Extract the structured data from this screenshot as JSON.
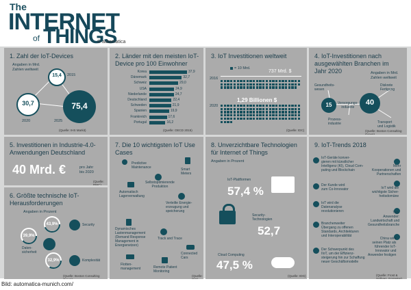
{
  "header": {
    "the": "The",
    "internet": "INTERNET",
    "of": "of",
    "things": "THINGS",
    "copyright": "© automatica"
  },
  "caption": "Bild: automatica-munich.com/",
  "p1": {
    "title": "1. Zahl der IoT-Devices",
    "sub": "Angaben in Mrd.\nZahlen weltweit",
    "v2015": "15,4",
    "y2015": "2015",
    "v2020": "30,7",
    "y2020": "2020",
    "v2025": "75,4",
    "y2025": "2025",
    "src": "(Quelle: IHS Markit)"
  },
  "p2": {
    "title": "2. Länder mit den meisten IoT-\nDevice pro 100 Einwohner",
    "src": "(Quelle: OECD 2015)",
    "rows": [
      {
        "c": "Korea",
        "v": "37,9",
        "n": 37.9
      },
      {
        "c": "Dänemark",
        "v": "32,7",
        "n": 32.7
      },
      {
        "c": "Schweiz",
        "v": "29,0",
        "n": 29.0
      },
      {
        "c": "USA",
        "v": "24,9",
        "n": 24.9
      },
      {
        "c": "Niederlande",
        "v": "24,7",
        "n": 24.7
      },
      {
        "c": "Deutschland",
        "v": "22,4",
        "n": 22.4
      },
      {
        "c": "Schweden",
        "v": "21,9",
        "n": 21.9
      },
      {
        "c": "Spanien",
        "v": "19,9",
        "n": 19.9
      },
      {
        "c": "Frankreich",
        "v": "17,6",
        "n": 17.6
      },
      {
        "c": "Portugal",
        "v": "16,2",
        "n": 16.2
      }
    ]
  },
  "p3": {
    "title": "3. IoT Investitionen weltweit",
    "legend": "= 10 Mrd.",
    "v2016": "737 Mrd. $",
    "y2016": "2016",
    "v2020": "1,29 Billionen $",
    "y2020": "2020",
    "src": "(Quelle: IDC)"
  },
  "p4": {
    "title": "4. IoT-Investitionen nach\nausgewählten Branchen im\nJahr 2020",
    "sub": "Angaben in Mrd.\nZahlen weltweit",
    "a": "Gesundheits-\nwesen",
    "b": "Diskrete\nFertigung",
    "c": "Versorgungs-\nindustrie",
    "d": "Prozess-\nindustrie",
    "e": "Transport\nund Logistik",
    "n15": "15",
    "n40": "40",
    "src": "(Quelle: Boston Consulting Group)"
  },
  "p5": {
    "title": "5. Investitionen in Industrie-4.0-\nAnwendungen Deutschland",
    "value": "40 Mrd. €",
    "unit": "pro Jahr\nbis 2020",
    "src": "(Quelle: PWC)"
  },
  "p6": {
    "title": "6. Größte technische IoT-\nHerausforderungen",
    "sub": "Angaben in Prozent",
    "v1": "43,9%",
    "l1": "Security",
    "v2": "39,9%",
    "l2": "Daten-\nsicherheit",
    "v3": "32,9%",
    "l3": "Komplexität",
    "src": "(Quelle: Boston Consulting Group)"
  },
  "p7": {
    "title": "7. Die 10 wichtigsten IoT Use Cases",
    "items": [
      "Predictive\nMaintenance",
      "Smart\nMeters",
      "Automatisch\nLagerverwaltung",
      "Selbstoptimierende\nProduktion",
      "Verteilte Energie-\nerzeugung und\nspeicherung",
      "Dynamisches\nLastenmanagement\n(Demand Response\nManagement in\nEnergienetzen)",
      "Track and Trace",
      "Connected\nCars",
      "Flotten-\nmanagement",
      "Remote Patient\nMonitoring"
    ],
    "src": "(Quelle: IDG)"
  },
  "p8": {
    "title": "8. Unverzichtbare Technologien\nfür Internet of Things",
    "sub": "Angaben in Prozent",
    "l1": "IoT-Plattformen",
    "v1": "57,4 %",
    "l2": "Security-\nTechnologien",
    "v2": "52,7",
    "l3": "Cloud Computing",
    "v3": "47,5 %",
    "src": "(Quelle: IDG)"
  },
  "p9": {
    "title": "9. IoT-Trends 2018",
    "items": [
      "IoT-Geräte konver-\ngieren mit künstlicher\nIntelligenz (KI), Cloud Com-\nputing und Blockchain",
      "Mehr\nKooperationen und\nPartnerschaften",
      "Der Kunde wird\nzum Co-Innovator",
      "IoT wird die\nwichtigste Sicher-\nheitsdomäne",
      "IoT wird die\nDatenanalyse\nrevolutionieren",
      "Top-\nAnwender:\nLandwirtschaft und\nGesundheitsbranche",
      "Branchenweiter\nÜbergang zu offenen\nStandards, Architekturen\nund Interoperabilität",
      "China wird\nseinen Platz als\nführender IoT-\nInnovator und\nAnwender festigen",
      "Der Schwerpunkt des\nIIoT, um der Effizienz-\nsteigerung hin zur Schaffung\nneuer Geschäftsmodelle"
    ],
    "src": "(Quelle: Frost & Sullivan, Forrester)"
  }
}
